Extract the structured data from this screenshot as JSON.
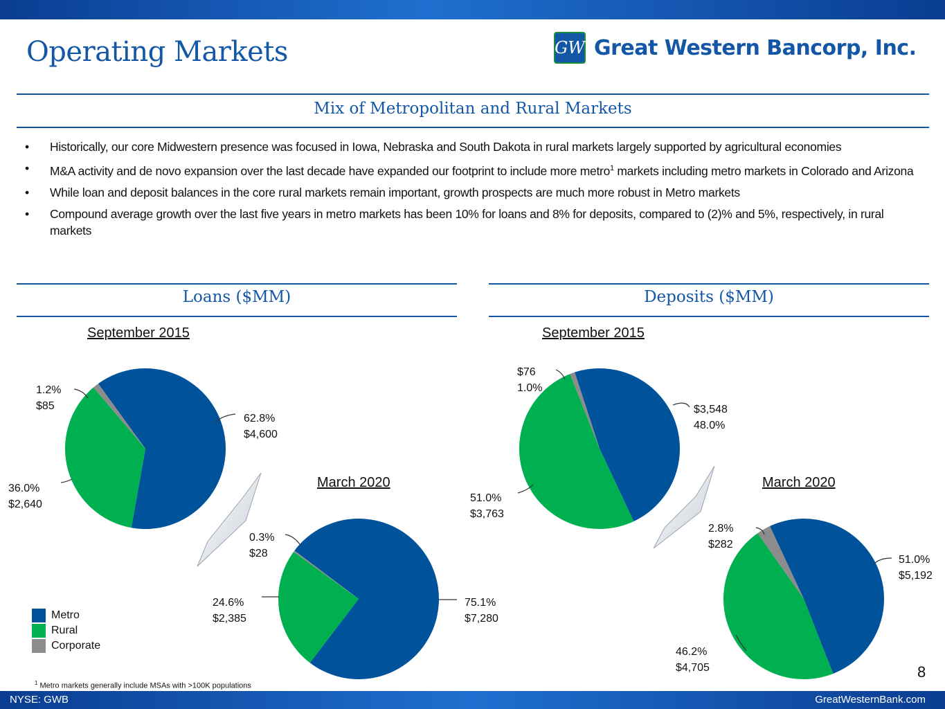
{
  "header": {
    "title": "Operating Markets",
    "logo_text": "Great Western Bancorp, Inc.",
    "logo_mark": "GW"
  },
  "section_heading": "Mix of Metropolitan and Rural Markets",
  "bullets": [
    "Historically, our core Midwestern presence was focused in Iowa, Nebraska and South Dakota in rural markets largely supported by agricultural economies",
    "M&A activity and de novo expansion over the last decade have expanded our footprint to include more metro",
    "markets including metro markets in Colorado and Arizona",
    "While loan and deposit balances in the core rural markets remain important, growth prospects are much more robust in Metro markets",
    "Compound average growth over the last five years in metro markets has been 10% for loans and 8% for deposits, compared to (2)% and 5%, respectively, in rural markets"
  ],
  "superscript": "1",
  "loans_heading": "Loans ($MM)",
  "deposits_heading": "Deposits ($MM)",
  "colors": {
    "metro": "#00529b",
    "rural": "#00b050",
    "corporate": "#8c8c8c",
    "accent": "#1357a6"
  },
  "legend": [
    {
      "name": "Metro",
      "color": "#00529b"
    },
    {
      "name": "Rural",
      "color": "#00b050"
    },
    {
      "name": "Corporate",
      "color": "#8c8c8c"
    }
  ],
  "chart_data": [
    {
      "type": "pie",
      "title": "September 2015",
      "group": "Loans ($MM)",
      "slices": [
        {
          "name": "Metro",
          "percent": 62.8,
          "value": "$4,600"
        },
        {
          "name": "Rural",
          "percent": 36.0,
          "value": "$2,640"
        },
        {
          "name": "Corporate",
          "percent": 1.2,
          "value": "$85"
        }
      ]
    },
    {
      "type": "pie",
      "title": "March 2020",
      "group": "Loans ($MM)",
      "slices": [
        {
          "name": "Metro",
          "percent": 75.1,
          "value": "$7,280"
        },
        {
          "name": "Rural",
          "percent": 24.6,
          "value": "$2,385"
        },
        {
          "name": "Corporate",
          "percent": 0.3,
          "value": "$28"
        }
      ]
    },
    {
      "type": "pie",
      "title": "September 2015",
      "group": "Deposits ($MM)",
      "slices": [
        {
          "name": "Metro",
          "percent": 48.0,
          "value": "$3,548"
        },
        {
          "name": "Rural",
          "percent": 51.0,
          "value": "$3,763"
        },
        {
          "name": "Corporate",
          "percent": 1.0,
          "value": "$76"
        }
      ]
    },
    {
      "type": "pie",
      "title": "March 2020",
      "group": "Deposits ($MM)",
      "slices": [
        {
          "name": "Metro",
          "percent": 51.0,
          "value": "$5,192"
        },
        {
          "name": "Rural",
          "percent": 46.2,
          "value": "$4,705"
        },
        {
          "name": "Corporate",
          "percent": 2.8,
          "value": "$282"
        }
      ]
    }
  ],
  "labels": {
    "loans_2015_corporate": [
      "1.2%",
      "$85"
    ],
    "loans_2015_metro": [
      "62.8%",
      "$4,600"
    ],
    "loans_2015_rural": [
      "36.0%",
      "$2,640"
    ],
    "loans_2020_corporate": [
      "0.3%",
      "$28"
    ],
    "loans_2020_rural": [
      "24.6%",
      "$2,385"
    ],
    "loans_2020_metro": [
      "75.1%",
      "$7,280"
    ],
    "deposits_2015_corporate": [
      "$76",
      "1.0%"
    ],
    "deposits_2015_metro": [
      "$3,548",
      "48.0%"
    ],
    "deposits_2015_rural": [
      "51.0%",
      "$3,763"
    ],
    "deposits_2020_corporate": [
      "2.8%",
      "$282"
    ],
    "deposits_2020_metro": [
      "51.0%",
      "$5,192"
    ],
    "deposits_2020_rural": [
      "46.2%",
      "$4,705"
    ]
  },
  "footnote": "Metro markets generally include MSAs with >100K populations",
  "page_number": "8",
  "footer": {
    "left": "NYSE: GWB",
    "right": "GreatWesternBank.com"
  }
}
